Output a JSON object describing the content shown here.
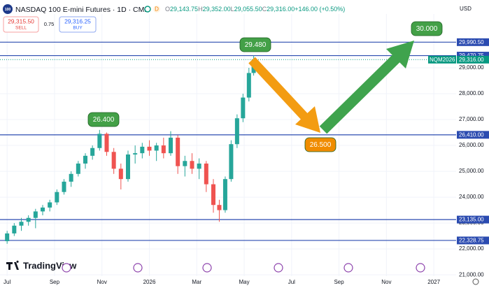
{
  "header": {
    "logo": "100",
    "title": "NASDAQ 100 E-mini Futures · 1D · CME",
    "badge": "D",
    "ohlc": [
      {
        "key": "O",
        "value": "29,143.75"
      },
      {
        "key": "H",
        "value": "29,352.00"
      },
      {
        "key": "L",
        "value": "29,055.50"
      },
      {
        "key": "C",
        "value": "29,316.00"
      }
    ],
    "change": "+146.00 (+0.50%)",
    "currency": "USD",
    "sell": {
      "price": "29,315.50",
      "label": "SELL"
    },
    "spread": "0.75",
    "buy": {
      "price": "29,316.25",
      "label": "BUY"
    },
    "brand": "TradingView"
  },
  "chart_data": {
    "type": "candlestick",
    "x": [
      0.0,
      0.3,
      0.6,
      0.9,
      1.2,
      1.5,
      1.8,
      2.1,
      2.4,
      2.7,
      3.0,
      3.3,
      3.6,
      3.9,
      4.2,
      4.5,
      4.8,
      5.1,
      5.4,
      5.7,
      6.0,
      6.3,
      6.6,
      6.9,
      7.2,
      7.5,
      7.8,
      8.1,
      8.4,
      8.7,
      8.95,
      9.2,
      9.45,
      9.7,
      9.95,
      10.2,
      10.4
    ],
    "open": [
      22300,
      22600,
      22900,
      23050,
      23200,
      23450,
      23600,
      23800,
      24200,
      24600,
      24900,
      25300,
      25600,
      25900,
      26450,
      25750,
      25100,
      24700,
      25650,
      25700,
      25950,
      25800,
      26000,
      25700,
      26300,
      25200,
      25400,
      25100,
      25300,
      24500,
      23700,
      23500,
      24700,
      26050,
      27050,
      27850,
      28800
    ],
    "high": [
      22700,
      23000,
      23200,
      23300,
      23550,
      23700,
      23900,
      24300,
      24700,
      25000,
      25400,
      25700,
      26000,
      26600,
      26500,
      25900,
      25300,
      25800,
      26000,
      26100,
      26200,
      26100,
      26300,
      26550,
      26400,
      25600,
      25700,
      25500,
      25400,
      24700,
      23900,
      24800,
      26200,
      27200,
      28000,
      29000,
      29480
    ],
    "low": [
      22200,
      22500,
      22700,
      22900,
      22800,
      23300,
      23450,
      23700,
      24100,
      24400,
      24800,
      25100,
      25450,
      25800,
      25600,
      24900,
      24300,
      24600,
      25300,
      25500,
      25600,
      25400,
      25500,
      25600,
      24900,
      24800,
      24900,
      24700,
      24200,
      23400,
      23050,
      23400,
      24600,
      25900,
      26900,
      27700,
      28700
    ],
    "close": [
      22600,
      22900,
      23050,
      23200,
      23450,
      23600,
      23800,
      24200,
      24600,
      24900,
      25300,
      25600,
      25900,
      26450,
      25750,
      25100,
      24700,
      25650,
      25700,
      25950,
      25800,
      26000,
      25700,
      26300,
      25200,
      25400,
      25100,
      25300,
      24500,
      23700,
      23500,
      24700,
      26050,
      27050,
      27850,
      28800,
      29316
    ],
    "up_color": "#26a69a",
    "down_color": "#ef5350",
    "xlim": [
      -0.3,
      18.94
    ],
    "xticks": [
      {
        "value": 0,
        "label": "Jul"
      },
      {
        "value": 2,
        "label": "Sep"
      },
      {
        "value": 4,
        "label": "Nov"
      },
      {
        "value": 6,
        "label": "2026"
      },
      {
        "value": 8,
        "label": "Mar"
      },
      {
        "value": 10,
        "label": "May"
      },
      {
        "value": 12,
        "label": "Jul"
      },
      {
        "value": 14,
        "label": "Sep"
      },
      {
        "value": 16,
        "label": "Nov"
      },
      {
        "value": 18,
        "label": "2027"
      }
    ],
    "ylim": [
      20950,
      31080
    ],
    "yticks": [
      {
        "value": 21000,
        "label": "21,000.00"
      },
      {
        "value": 22000,
        "label": "22,000.00"
      },
      {
        "value": 23000,
        "label": "23,000.00"
      },
      {
        "value": 24000,
        "label": "24,000.00"
      },
      {
        "value": 25000,
        "label": "25,000.00"
      },
      {
        "value": 26000,
        "label": "26,000.00"
      },
      {
        "value": 27000,
        "label": "27,000.00"
      },
      {
        "value": 28000,
        "label": "28,000.00"
      },
      {
        "value": 29000,
        "label": "29,000.00"
      }
    ],
    "grid": true,
    "hlines": [
      {
        "value": 29990.5,
        "label": "29,990.50"
      },
      {
        "value": 29470.75,
        "label": "29,470.75"
      },
      {
        "value": 26410,
        "label": "26,410.00"
      },
      {
        "value": 23135,
        "label": "23,135.00"
      },
      {
        "value": 22328.75,
        "label": "22,328.75"
      }
    ],
    "hline_color": "#2b4bb0",
    "last_price": {
      "value": 29316,
      "label": "29,316.00",
      "symbol": "NQM2026",
      "color": "#089981"
    },
    "annotations": [
      {
        "text": "29.480",
        "color": "#43a047"
      },
      {
        "text": "26.400",
        "color": "#43a047"
      },
      {
        "text": "30.000",
        "color": "#43a047"
      },
      {
        "text": "26.500",
        "color": "#f08c00"
      }
    ]
  }
}
